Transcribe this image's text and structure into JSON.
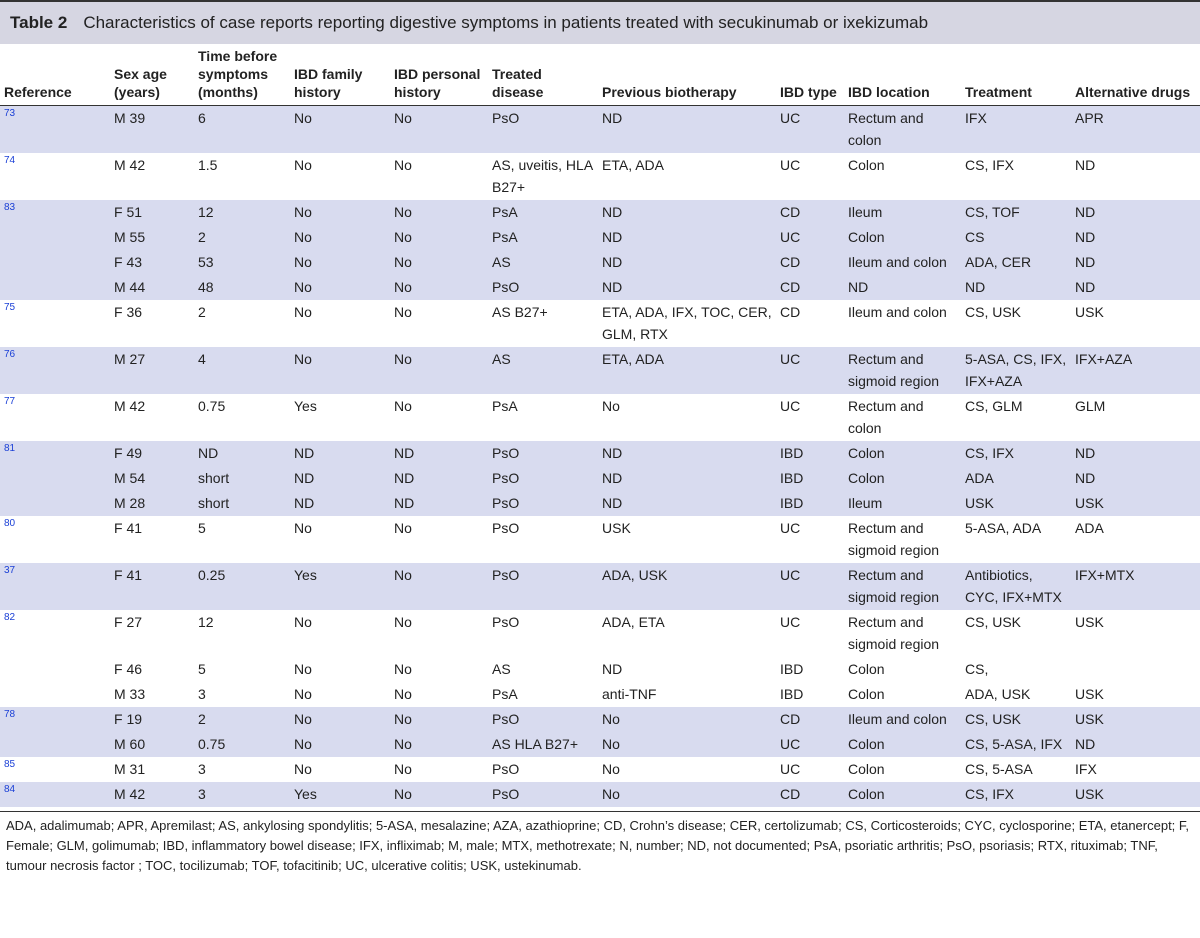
{
  "title": {
    "label": "Table 2",
    "caption": "Characteristics of case reports reporting digestive symptoms in patients treated with secukinumab or ixekizumab"
  },
  "table": {
    "headers": [
      "Reference",
      "Sex age (years)",
      "Time before symptoms (months)",
      "IBD family history",
      "IBD personal history",
      "Treated disease",
      "Previous biotherapy",
      "IBD type",
      "IBD location",
      "Treatment",
      "Alternative drugs"
    ],
    "rows": [
      [
        "73",
        "M 39",
        "6",
        "No",
        "No",
        "PsO",
        "ND",
        "UC",
        "Rectum and colon",
        "IFX",
        "APR"
      ],
      [
        "74",
        "M 42",
        "1.5",
        "No",
        "No",
        "AS, uveitis, HLA B27+",
        "ETA, ADA",
        "UC",
        "Colon",
        "CS, IFX",
        "ND"
      ],
      [
        "83",
        "F 51",
        "12",
        "No",
        "No",
        "PsA",
        "ND",
        "CD",
        "Ileum",
        "CS, TOF",
        "ND"
      ],
      [
        null,
        "M 55",
        "2",
        "No",
        "No",
        "PsA",
        "ND",
        "UC",
        "Colon",
        "CS",
        "ND"
      ],
      [
        null,
        "F 43",
        "53",
        "No",
        "No",
        "AS",
        "ND",
        "CD",
        "Ileum and colon",
        "ADA, CER",
        "ND"
      ],
      [
        null,
        "M 44",
        "48",
        "No",
        "No",
        "PsO",
        "ND",
        "CD",
        "ND",
        "ND",
        "ND"
      ],
      [
        "75",
        "F 36",
        "2",
        "No",
        "No",
        "AS B27+",
        "ETA, ADA, IFX, TOC, CER, GLM, RTX",
        "CD",
        "Ileum and colon",
        "CS, USK",
        "USK"
      ],
      [
        "76",
        "M 27",
        "4",
        "No",
        "No",
        "AS",
        "ETA, ADA",
        "UC",
        "Rectum and sigmoid region",
        "5-ASA, CS, IFX, IFX+AZA",
        "IFX+AZA"
      ],
      [
        "77",
        "M 42",
        "0.75",
        "Yes",
        "No",
        "PsA",
        "No",
        "UC",
        "Rectum and colon",
        "CS, GLM",
        "GLM"
      ],
      [
        "81",
        "F 49",
        "ND",
        "ND",
        "ND",
        "PsO",
        "ND",
        "IBD",
        "Colon",
        "CS, IFX",
        "ND"
      ],
      [
        null,
        "M 54",
        "short",
        "ND",
        "ND",
        "PsO",
        "ND",
        "IBD",
        "Colon",
        "ADA",
        "ND"
      ],
      [
        null,
        "M 28",
        "short",
        "ND",
        "ND",
        "PsO",
        "ND",
        "IBD",
        "Ileum",
        "USK",
        "USK"
      ],
      [
        "80",
        "F 41",
        "5",
        "No",
        "No",
        "PsO",
        "USK",
        "UC",
        "Rectum and sigmoid region",
        "5-ASA, ADA",
        "ADA"
      ],
      [
        "37",
        "F 41",
        "0.25",
        "Yes",
        "No",
        "PsO",
        "ADA, USK",
        "UC",
        "Rectum and sigmoid region",
        "Antibiotics, CYC, IFX+MTX",
        "IFX+MTX"
      ],
      [
        "82",
        "F 27",
        "12",
        "No",
        "No",
        "PsO",
        "ADA, ETA",
        "UC",
        "Rectum and sigmoid region",
        "CS, USK",
        "USK"
      ],
      [
        null,
        "F 46",
        "5",
        "No",
        "No",
        "AS",
        "ND",
        "IBD",
        "Colon",
        "CS,",
        null
      ],
      [
        null,
        "M 33",
        "3",
        "No",
        "No",
        "PsA",
        "anti-TNF",
        "IBD",
        "Colon",
        "ADA, USK",
        "USK"
      ],
      [
        "78",
        "F 19",
        "2",
        "No",
        "No",
        "PsO",
        "No",
        "CD",
        "Ileum and colon",
        "CS, USK",
        "USK"
      ],
      [
        null,
        "M 60",
        "0.75",
        "No",
        "No",
        "AS HLA B27+",
        "No",
        "UC",
        "Colon",
        "CS, 5-ASA, IFX",
        "ND"
      ],
      [
        "85",
        "M 31",
        "3",
        "No",
        "No",
        "PsO",
        "No",
        "UC",
        "Colon",
        "CS, 5-ASA",
        "IFX"
      ],
      [
        "84",
        "M 42",
        "3",
        "Yes",
        "No",
        "PsO",
        "No",
        "CD",
        "Colon",
        "CS, IFX",
        "USK"
      ]
    ]
  },
  "footnote": "ADA, adalimumab; APR, Apremilast; AS, ankylosing spondylitis; 5-ASA, mesalazine; AZA, azathioprine; CD, Crohn’s disease; CER, certolizumab; CS, Corticosteroids; CYC, cyclosporine; ETA, etanercept; F, Female; GLM, golimumab; IBD, inflammatory bowel disease; IFX, infliximab; M, male; MTX, methotrexate; N, number; ND, not documented; PsA, psoriatic arthritis; PsO, psoriasis; RTX, rituximab; TNF, tumour necrosis factor ; TOC, tocilizumab; TOF, tofacitinib; UC, ulcerative colitis; USK, ustekinumab."
}
